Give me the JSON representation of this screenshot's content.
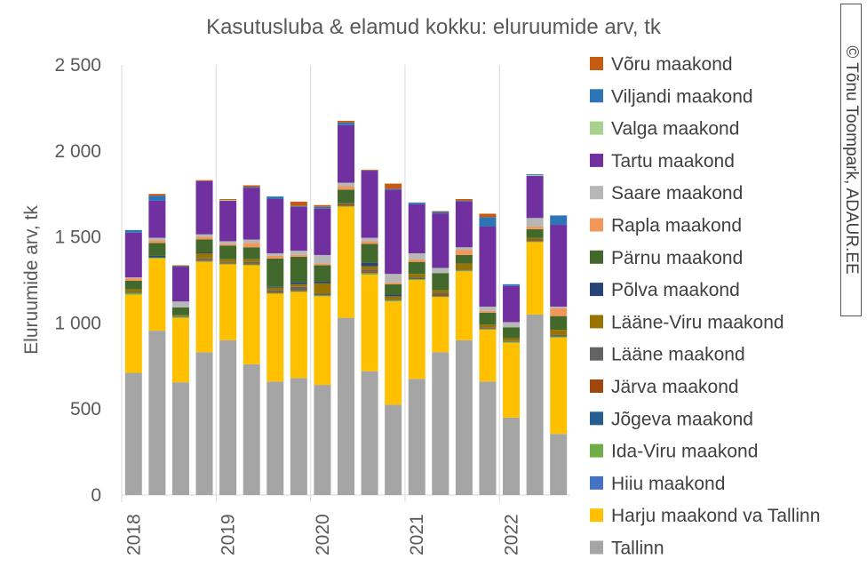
{
  "chart_data": {
    "type": "bar",
    "stacked": true,
    "title": "Kasutusluba & elamud kokku: eluruumide arv, tk",
    "ylabel": "Eluruumide arv, tk",
    "xlabel": "",
    "ylim": [
      0,
      2500
    ],
    "yticks": [
      "0",
      "500",
      "1 000",
      "1 500",
      "2 000",
      "2 500"
    ],
    "ytick_values": [
      0,
      500,
      1000,
      1500,
      2000,
      2500
    ],
    "x_year_labels": [
      "2018",
      "2019",
      "2020",
      "2021",
      "2022"
    ],
    "gridlines": "vertical-per-year",
    "legend_position": "right",
    "legend_order": [
      "Võru maakond",
      "Viljandi maakond",
      "Valga maakond",
      "Tartu maakond",
      "Saare maakond",
      "Rapla maakond",
      "Pärnu maakond",
      "Põlva maakond",
      "Lääne-Viru maakond",
      "Lääne maakond",
      "Järva maakond",
      "Jõgeva maakond",
      "Ida-Viru maakond",
      "Hiiu maakond",
      "Harju maakond va Tallinn",
      "Tallinn"
    ],
    "series": [
      {
        "name": "Tallinn",
        "color": "#a5a5a5",
        "values": [
          710,
          955,
          655,
          830,
          900,
          760,
          660,
          680,
          640,
          1030,
          720,
          525,
          675,
          830,
          900,
          660,
          450,
          1050,
          355
        ]
      },
      {
        "name": "Harju maakond va Tallinn",
        "color": "#ffc000",
        "values": [
          455,
          420,
          375,
          525,
          440,
          575,
          510,
          500,
          515,
          645,
          560,
          600,
          575,
          320,
          400,
          300,
          435,
          420,
          560
        ]
      },
      {
        "name": "Hiiu maakond",
        "color": "#4472c4",
        "values": [
          0,
          0,
          0,
          0,
          0,
          0,
          0,
          0,
          0,
          0,
          0,
          0,
          0,
          0,
          0,
          0,
          0,
          0,
          0
        ]
      },
      {
        "name": "Ida-Viru maakond",
        "color": "#70ad47",
        "values": [
          10,
          5,
          5,
          5,
          5,
          5,
          5,
          5,
          5,
          5,
          10,
          5,
          5,
          5,
          5,
          5,
          5,
          5,
          5
        ]
      },
      {
        "name": "Jõgeva maakond",
        "color": "#255e91",
        "values": [
          0,
          0,
          0,
          0,
          0,
          0,
          0,
          0,
          0,
          0,
          0,
          0,
          0,
          0,
          0,
          0,
          0,
          0,
          0
        ]
      },
      {
        "name": "Järva maakond",
        "color": "#9e480e",
        "values": [
          0,
          0,
          0,
          5,
          5,
          5,
          5,
          5,
          0,
          10,
          10,
          0,
          0,
          10,
          0,
          5,
          0,
          5,
          0
        ]
      },
      {
        "name": "Lääne maakond",
        "color": "#636363",
        "values": [
          5,
          0,
          5,
          10,
          5,
          10,
          10,
          20,
          10,
          5,
          10,
          5,
          10,
          10,
          5,
          5,
          5,
          5,
          10
        ]
      },
      {
        "name": "Lääne-Viru maakond",
        "color": "#997300",
        "values": [
          15,
          0,
          5,
          30,
          15,
          15,
          15,
          15,
          60,
          0,
          20,
          20,
          20,
          15,
          35,
          15,
          15,
          10,
          30
        ]
      },
      {
        "name": "Põlva maakond",
        "color": "#264478",
        "values": [
          0,
          10,
          0,
          5,
          0,
          0,
          5,
          10,
          10,
          0,
          20,
          10,
          0,
          0,
          0,
          0,
          0,
          0,
          0
        ]
      },
      {
        "name": "Pärnu maakond",
        "color": "#43682b",
        "values": [
          50,
          75,
          45,
          75,
          80,
          70,
          165,
          150,
          95,
          80,
          110,
          60,
          70,
          100,
          50,
          70,
          65,
          50,
          80
        ]
      },
      {
        "name": "Rapla maakond",
        "color": "#f1975a",
        "values": [
          15,
          15,
          0,
          15,
          10,
          25,
          15,
          10,
          10,
          20,
          15,
          10,
          15,
          0,
          30,
          10,
          0,
          15,
          45
        ]
      },
      {
        "name": "Saare maakond",
        "color": "#b7b7b7",
        "values": [
          5,
          15,
          35,
          15,
          15,
          20,
          15,
          25,
          50,
          20,
          20,
          50,
          35,
          30,
          15,
          25,
          30,
          50,
          10
        ]
      },
      {
        "name": "Tartu maakond",
        "color": "#7030a0",
        "values": [
          260,
          215,
          200,
          310,
          235,
          300,
          315,
          255,
          270,
          335,
          390,
          490,
          285,
          315,
          265,
          465,
          210,
          245,
          475
        ]
      },
      {
        "name": "Valga maakond",
        "color": "#a9d18e",
        "values": [
          0,
          0,
          0,
          0,
          5,
          0,
          0,
          0,
          0,
          0,
          0,
          0,
          0,
          0,
          0,
          0,
          0,
          5,
          0
        ]
      },
      {
        "name": "Viljandi maakond",
        "color": "#2e75b6",
        "values": [
          15,
          30,
          5,
          0,
          0,
          5,
          15,
          5,
          10,
          15,
          0,
          5,
          10,
          10,
          5,
          55,
          10,
          5,
          55
        ]
      },
      {
        "name": "Võru maakond",
        "color": "#c55a11",
        "values": [
          0,
          10,
          5,
          5,
          5,
          10,
          0,
          25,
          10,
          10,
          5,
          30,
          0,
          5,
          10,
          20,
          0,
          0,
          0
        ]
      }
    ]
  },
  "credit": "© Tõnu Toompark, ADAUR.EE"
}
